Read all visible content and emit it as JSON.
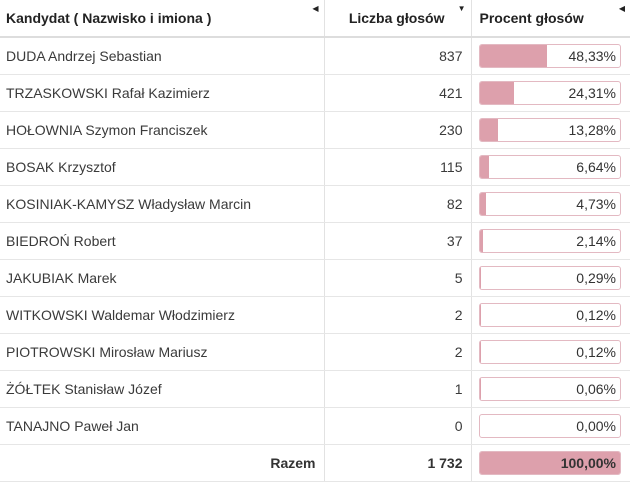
{
  "header": {
    "col_name": "Kandydat ( Nazwisko i imiona )",
    "col_votes": "Liczba głosów",
    "col_percent": "Procent głosów",
    "sort_icon": "sort-triangle-icon"
  },
  "rows": [
    {
      "name": "DUDA Andrzej Sebastian",
      "votes": "837",
      "percent": "48,33%",
      "fraction": 0.4833
    },
    {
      "name": "TRZASKOWSKI Rafał Kazimierz",
      "votes": "421",
      "percent": "24,31%",
      "fraction": 0.2431
    },
    {
      "name": "HOŁOWNIA Szymon Franciszek",
      "votes": "230",
      "percent": "13,28%",
      "fraction": 0.1328
    },
    {
      "name": "BOSAK Krzysztof",
      "votes": "115",
      "percent": "6,64%",
      "fraction": 0.0664
    },
    {
      "name": "KOSINIAK-KAMYSZ Władysław Marcin",
      "votes": "82",
      "percent": "4,73%",
      "fraction": 0.0473
    },
    {
      "name": "BIEDROŃ Robert",
      "votes": "37",
      "percent": "2,14%",
      "fraction": 0.0214
    },
    {
      "name": "JAKUBIAK Marek",
      "votes": "5",
      "percent": "0,29%",
      "fraction": 0.0029
    },
    {
      "name": "WITKOWSKI Waldemar Włodzimierz",
      "votes": "2",
      "percent": "0,12%",
      "fraction": 0.0012
    },
    {
      "name": "PIOTROWSKI Mirosław Mariusz",
      "votes": "2",
      "percent": "0,12%",
      "fraction": 0.0012
    },
    {
      "name": "ŻÓŁTEK Stanisław Józef",
      "votes": "1",
      "percent": "0,06%",
      "fraction": 0.0006
    },
    {
      "name": "TANAJNO Paweł Jan",
      "votes": "0",
      "percent": "0,00%",
      "fraction": 0.0
    }
  ],
  "total": {
    "label": "Razem",
    "votes": "1 732",
    "percent": "100,00%",
    "fraction": 1.0
  },
  "colors": {
    "bar_fill": "#dda0ac",
    "bar_border": "#e3b9c2"
  }
}
